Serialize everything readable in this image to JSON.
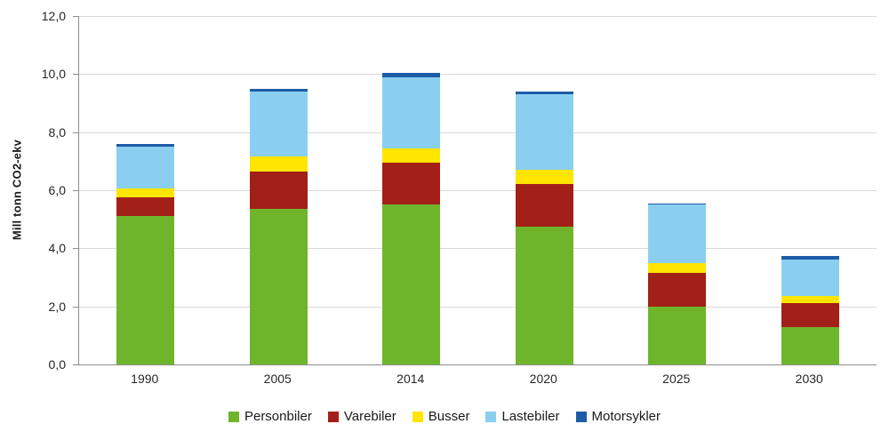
{
  "chart_data": {
    "type": "bar",
    "stacked": true,
    "title": "",
    "xlabel": "",
    "ylabel": "Mill tonn CO2-ekv",
    "categories": [
      "1990",
      "2005",
      "2014",
      "2020",
      "2025",
      "2030"
    ],
    "series": [
      {
        "name": "Personbiler",
        "color": "#6fb52c",
        "values": [
          5.1,
          5.35,
          5.5,
          4.75,
          2.0,
          1.3
        ]
      },
      {
        "name": "Varebiler",
        "color": "#a32018",
        "values": [
          0.65,
          1.3,
          1.45,
          1.45,
          1.15,
          0.8
        ]
      },
      {
        "name": "Busser",
        "color": "#ffe500",
        "values": [
          0.3,
          0.5,
          0.5,
          0.5,
          0.35,
          0.25
        ]
      },
      {
        "name": "Lastebiler",
        "color": "#8bcff0",
        "values": [
          1.45,
          2.25,
          2.45,
          2.6,
          2.0,
          1.25
        ]
      },
      {
        "name": "Motorsykler",
        "color": "#1e5ca8",
        "values": [
          0.1,
          0.1,
          0.15,
          0.1,
          0.05,
          0.15
        ]
      }
    ],
    "ylim": [
      0,
      12
    ],
    "ytick_step": 2,
    "ytick_labels": [
      "0,0",
      "2,0",
      "4,0",
      "6,0",
      "8,0",
      "10,0",
      "12,0"
    ],
    "grid": true,
    "legend_position": "bottom"
  }
}
